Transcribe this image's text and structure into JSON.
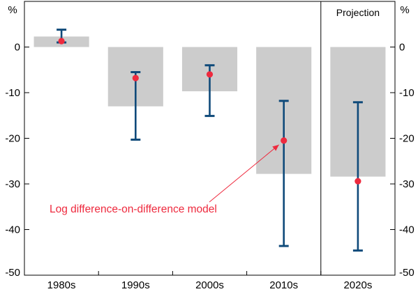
{
  "chart_data": {
    "type": "bar",
    "categories": [
      "1980s",
      "1990s",
      "2000s",
      "2010s",
      "2020s"
    ],
    "units": {
      "left": "%",
      "right": "%"
    },
    "ylim": [
      -50,
      10
    ],
    "yticks": [
      0,
      -10,
      -20,
      -30,
      -40,
      -50
    ],
    "ytick_labels": [
      "0",
      "-10",
      "-20",
      "-30",
      "-40",
      "-50"
    ],
    "grid": false,
    "projection_label": "Projection",
    "projection_start_category": "2020s",
    "series": [
      {
        "kind": "bar",
        "values": [
          2.3,
          -13.0,
          -9.7,
          -27.8,
          -28.4
        ]
      },
      {
        "kind": "point",
        "values": [
          1.3,
          -6.8,
          -6.0,
          -20.5,
          -29.4
        ]
      },
      {
        "kind": "errorbar",
        "low": [
          1.0,
          -20.3,
          -15.1,
          -43.6,
          -44.6
        ],
        "high": [
          3.8,
          -5.5,
          -4.0,
          -11.8,
          -12.1
        ]
      }
    ],
    "annotation": {
      "text": "Log difference-on-difference model",
      "points_to": "2010s"
    },
    "colors": {
      "bar": "#cccccc",
      "errorbar": "#0f4a7a",
      "point": "#ee2a3e",
      "annotation": "#ee2a3e",
      "axis": "#000000"
    }
  }
}
